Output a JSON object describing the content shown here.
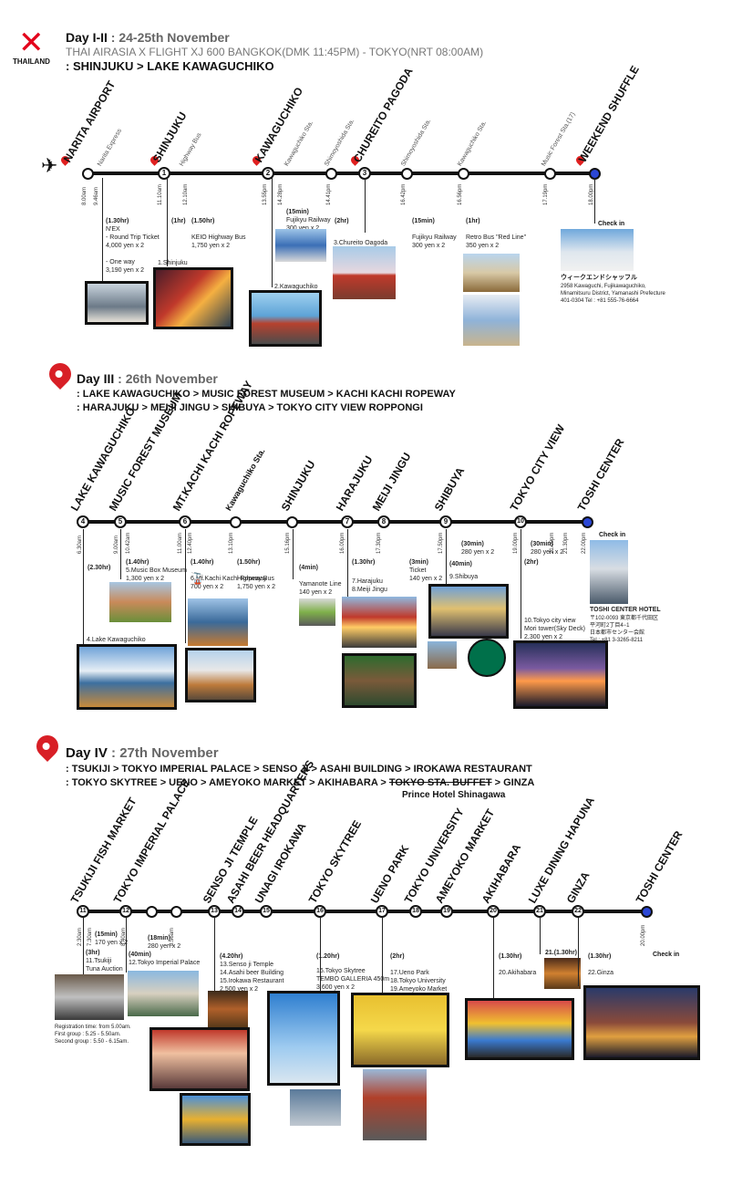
{
  "logo": {
    "brand": "AirAsia",
    "country": "THAILAND"
  },
  "colors": {
    "accent_red": "#d81f26",
    "end_station_blue": "#2b47d6"
  },
  "day1": {
    "title": "Day I-II",
    "date": ": 24-25th November",
    "flight": "THAI AIRASIA X FLIGHT XJ 600 BANGKOK(DMK 11:45PM) - TOKYO(NRT 08:00AM)",
    "route": ": SHINJUKU > LAKE KAWAGUCHIKO",
    "stops": [
      "NARITA AIRPORT",
      "SHINJUKU",
      "KAWAGUCHIKO",
      "CHUREITO PAGODA",
      "WEEKEND SHUFFLE"
    ],
    "lines": [
      "Narita Express",
      "Highway Bus",
      "Kawaguchiko Sta.",
      "Shimoyoshida Sta.",
      "Shimoyoshida Sta.",
      "Kawaguchiko Sta.",
      "Music Forest Sta.(17)"
    ],
    "times": [
      "8.00am",
      "9.46am",
      "11.10am",
      "12.10am",
      "13.55pm",
      "14.28pm",
      "14.41pm",
      "16.42pm",
      "16.56pm",
      "17.19pm",
      "18.00pm"
    ],
    "info": [
      {
        "dur": "(1.30hr)",
        "text": "N'EX\n- Round Trip Ticket\n4,000 yen x 2\n\n- One way\n3,190 yen x 2"
      },
      {
        "dur": "(1hr)",
        "text": "1.Shinjuku"
      },
      {
        "dur": "(1.50hr)",
        "text": "KEIO Highway Bus\n1,750 yen x 2"
      },
      {
        "dur": "(15min)",
        "text": "Fujikyu Railway\n300 yen x 2"
      },
      {
        "dur": "(2hr)",
        "text": "3.Chureito Oagoda"
      },
      {
        "dur": "(15min)",
        "text": "Fujikyu Railway\n300 yen x 2"
      },
      {
        "dur": "(1hr)",
        "text": "Retro Bus \"Red Line\"\n350 yen x 2"
      },
      {
        "dur": "",
        "text": "2.Kawaguchiko"
      }
    ],
    "checkin": "Check in",
    "hotel": "ウィークエンドシャッフル",
    "hotel_addr": "2958 Kawaguchi, Fujikawaguchiko,\nMinamitsuru District, Yamanashi Prefecture\n401-0304 Tel : +81 555-76-6664"
  },
  "day3": {
    "title": "Day III",
    "date": ": 26th November",
    "route1": ": LAKE KAWAGUCHIKO > MUSIC FOREST MUSEUM > KACHI KACHI ROPEWAY",
    "route2": ": HARAJUKU > MEIJI JINGU > SHIBUYA > TOKYO CITY VIEW ROPPONGI",
    "stops": [
      "LAKE KAWAGUCHIKO",
      "MUSIC FOREST MUSEUM",
      "MT.KACHI KACHI ROPEWAY",
      "Kawaguchiko Sta.",
      "SHINJUKU",
      "HARAJUKU",
      "MEIJI JINGU",
      "SHIBUYA",
      "TOKYO CITY VIEW",
      "TOSHI CENTER"
    ],
    "times": [
      "6.30am",
      "9.00am",
      "10.42am",
      "11.00am",
      "12.40pm",
      "13.10pm",
      "15.16pm",
      "16.00pm",
      "17.30pm",
      "17.50pm",
      "19.00pm",
      "21.00pm",
      "21.30pm",
      "22.00pm"
    ],
    "info": [
      {
        "dur": "(2.30hr)",
        "text": "4.Lake Kawaguchiko"
      },
      {
        "dur": "(1.40hr)",
        "text": "5.Music Box Museum\n1,300 yen x 2"
      },
      {
        "dur": "(1.40hr)",
        "text": "6.Mt.Kachi Kachi Ropeway\n700 yen x 2"
      },
      {
        "dur": "(1.50hr)",
        "text": "Highway Bus\n1,750 yen x 2"
      },
      {
        "dur": "(4min)",
        "text": "Yamanote Line\n140 yen x 2"
      },
      {
        "dur": "(1.30hr)",
        "text": "7.Harajuku\n8.Meiji Jingu"
      },
      {
        "dur": "(3min)",
        "text": "Ticket\n140 yen x 2"
      },
      {
        "dur": "(30min)",
        "text": "280 yen x 2"
      },
      {
        "dur": "(40min)",
        "text": "9.Shibuya"
      },
      {
        "dur": "(2hr)",
        "text": "10.Tokyo city view\nMori tower(Sky Deck)\n2,300 yen x 2"
      },
      {
        "dur": "(30min)",
        "text": "280 yen x 2"
      }
    ],
    "checkin": "Check in",
    "hotel": "TOSHI CENTER HOTEL",
    "hotel_addr": "〒102-0093 東京都千代田区\n平河町2丁目4−1\n日本都市センター会館\nTel : +81 3-3265-8211"
  },
  "day4": {
    "title": "Day IV",
    "date": ": 27th November",
    "route1": ": TSUKIJI > TOKYO IMPERIAL PALACE > SENSO JI > ASAHI BUILDING > IROKAWA RESTAURANT",
    "route2a": ": TOKYO SKYTREE > UENO > AMEYOKO MARKET > AKIHABARA > ",
    "route2_strike": "TOKYO STA. BUFFET",
    "route2b": " > GINZA",
    "route2_note": "Prince Hotel Shinagawa",
    "stops": [
      "TSUKIJI FISH MARKET",
      "TOKYO IMPERIAL PALACE",
      "SENSO JI TEMPLE",
      "ASAHI BEER HEADQUARTERS",
      "UNAGI IROKAWA",
      "TOKYO SKYTREE",
      "UENO PARK",
      "TOKYO UNIVERSITY",
      "AMEYOKO MARKET",
      "AKIHABARA",
      "LUXE DINING HAPUNA",
      "GINZA",
      "TOSHI CENTER"
    ],
    "times": [
      "2.30am",
      "7.30am",
      "8.40am",
      "8.56am",
      "20.00pm"
    ],
    "info": [
      {
        "dur": "(3hr)",
        "text": "11.Tsukiji\nTuna Auction"
      },
      {
        "dur": "(15min)",
        "text": "170 yen x 2"
      },
      {
        "dur": "(40min)",
        "text": "12.Tokyo Imperial Palace"
      },
      {
        "dur": "(18min)",
        "text": "280 yen x 2"
      },
      {
        "dur": "(4.20hr)",
        "text": "13.Senso ji Temple\n14.Asahi beer Building\n15.Irokawa Restaurant\n2,500 yen x 2"
      },
      {
        "dur": "(1.20hr)",
        "text": "16.Tokyo Skytree\nTEMBO GALLERIA 450m\n3,600 yen x 2"
      },
      {
        "dur": "(2hr)",
        "text": "17.Ueno Park\n18.Tokyo University\n19.Ameyoko Market"
      },
      {
        "dur": "(1.30hr)",
        "text": "20.Akihabara"
      },
      {
        "dur": "21.(1.30hr)",
        "text": ""
      },
      {
        "dur": "(1.30hr)",
        "text": "22.Ginza"
      }
    ],
    "registration": "Registration time: from 5.00am.\nFirst group : 5.25 - 5.50am.\nSecond group : 5.50 - 6.15am.",
    "checkin": "Check in"
  }
}
